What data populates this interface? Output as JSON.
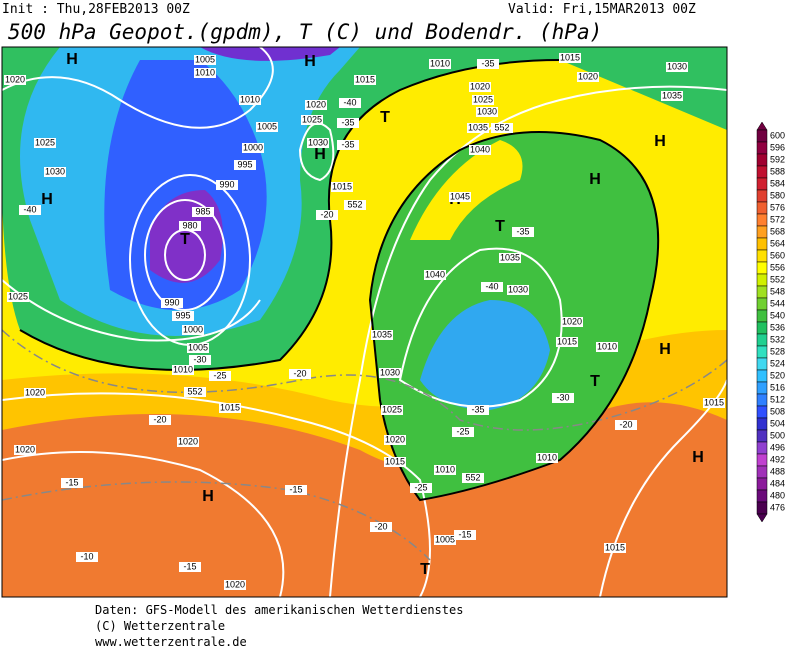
{
  "header": {
    "init": "Init : Thu,28FEB2013 00Z",
    "valid": "Valid: Fri,15MAR2013 00Z",
    "title": "500 hPa Geopot.(gpdm), T (C) und Bodendr. (hPa)"
  },
  "footer": [
    "Daten: GFS-Modell des amerikanischen Wetterdienstes",
    "(C) Wetterzentrale",
    "www.wetterzentrale.de"
  ],
  "colorbar": {
    "levels": [
      476,
      480,
      484,
      488,
      492,
      496,
      500,
      504,
      508,
      512,
      516,
      520,
      524,
      528,
      532,
      536,
      540,
      544,
      548,
      552,
      556,
      560,
      564,
      568,
      572,
      576,
      580,
      584,
      588,
      592,
      596,
      600
    ],
    "colors": [
      "#4b0050",
      "#6a0a7a",
      "#8b1a9b",
      "#a030b8",
      "#c040d0",
      "#9040d0",
      "#5030c0",
      "#3030d0",
      "#3050ff",
      "#3080ff",
      "#30a0ff",
      "#30c0ff",
      "#40d8f0",
      "#30e0c0",
      "#20d090",
      "#20c060",
      "#40c040",
      "#70d030",
      "#a0e020",
      "#d0f000",
      "#ffff00",
      "#ffe000",
      "#ffc000",
      "#ffa020",
      "#ff8030",
      "#f06030",
      "#e04030",
      "#d02030",
      "#c01030",
      "#a00030",
      "#900040",
      "#700040"
    ]
  },
  "map_labels": [
    "H",
    "H",
    "H",
    "H",
    "H",
    "H",
    "H",
    "H",
    "H",
    "H",
    "T",
    "T",
    "T",
    "T",
    "T",
    "1020",
    "1025",
    "1030",
    "1025",
    "1020",
    "1020",
    "1005",
    "1010",
    "1010",
    "1005",
    "1000",
    "995",
    "990",
    "985",
    "980",
    "990",
    "995",
    "1000",
    "1005",
    "1010",
    "1015",
    "1020",
    "1020",
    "1015",
    "1020",
    "1025",
    "1030",
    "1015",
    "1010",
    "1020",
    "1025",
    "1030",
    "1035",
    "1040",
    "1045",
    "1040",
    "1035",
    "1030",
    "1035",
    "1030",
    "1025",
    "1020",
    "1015",
    "1020",
    "1015",
    "1010",
    "1010",
    "1010",
    "1005",
    "1015",
    "1015",
    "1020",
    "1030",
    "1035",
    "1015",
    "-35",
    "-40",
    "-35",
    "-35",
    "-40",
    "-20",
    "-35",
    "-40",
    "-30",
    "-25",
    "-20",
    "-20",
    "-35",
    "-25",
    "-30",
    "-20",
    "-15",
    "-15",
    "-20",
    "-25",
    "-15",
    "-10",
    "-15",
    "552",
    "552",
    "552",
    "552"
  ]
}
